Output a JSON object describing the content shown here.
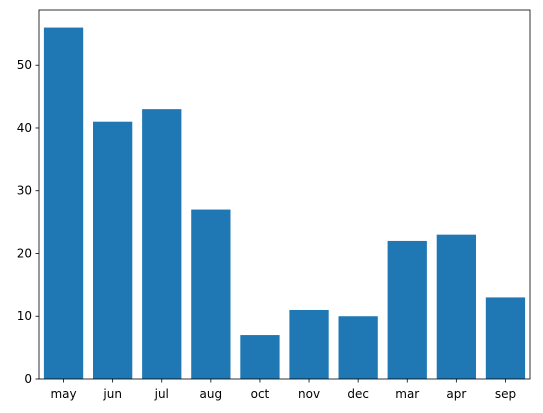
{
  "chart_data": {
    "type": "bar",
    "title": "",
    "xlabel": "",
    "ylabel": "",
    "categories": [
      "may",
      "jun",
      "jul",
      "aug",
      "oct",
      "nov",
      "dec",
      "mar",
      "apr",
      "sep"
    ],
    "values": [
      56,
      41,
      43,
      27,
      7,
      11,
      10,
      22,
      23,
      13
    ],
    "ylim": [
      0,
      58.8
    ],
    "yticks": [
      0,
      10,
      20,
      30,
      40,
      50
    ],
    "bar_color": "#1f77b4",
    "grid": false,
    "legend": "none"
  }
}
